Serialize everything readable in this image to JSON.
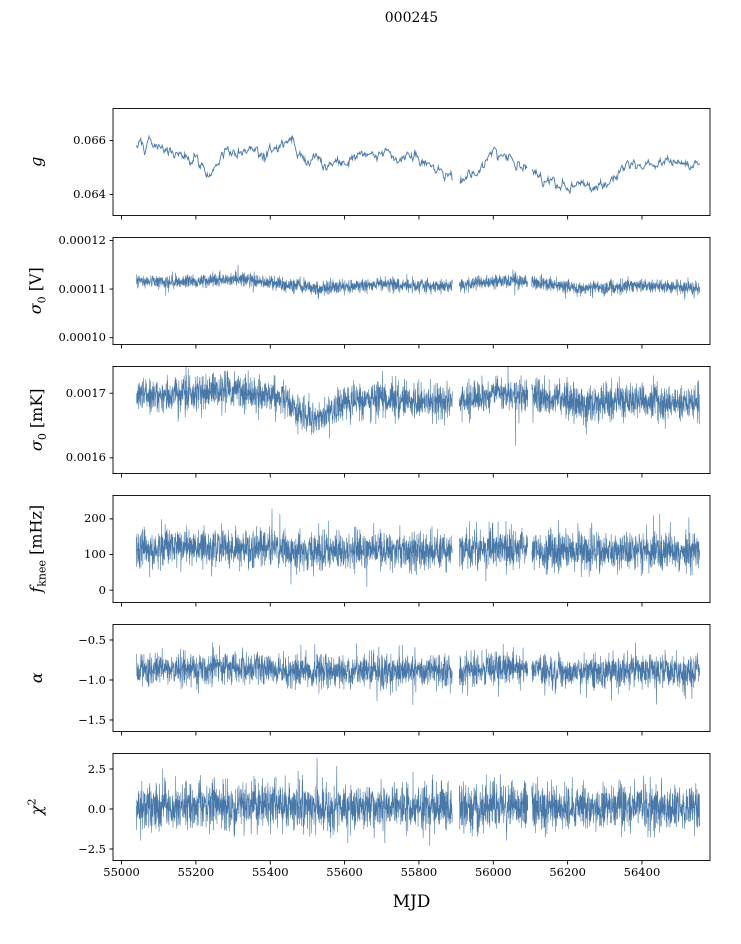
{
  "title": "000245",
  "chart_data": {
    "type": "line",
    "title": "000245",
    "xlabel": "MJD",
    "xlim": [
      54977,
      56583
    ],
    "xticks": [
      55000,
      55200,
      55400,
      55600,
      55800,
      56000,
      56200,
      56400
    ],
    "xtick_labels": [
      "55000",
      "55200",
      "55400",
      "55600",
      "55800",
      "56000",
      "56200",
      "56400"
    ],
    "x_data_range": [
      55040,
      56555
    ],
    "gaps": [
      [
        55890,
        55908
      ],
      [
        56093,
        56103
      ]
    ],
    "line_color": "#4878a8",
    "frame_color": "#000000",
    "panels": [
      {
        "name": "g",
        "ylabel": {
          "pre": "g",
          "sub": "",
          "sup": "",
          "post": ""
        },
        "ylim": [
          0.0632,
          0.0672
        ],
        "yticks": [
          0.066,
          0.064
        ],
        "ytick_labels": [
          "0.066",
          "0.064"
        ],
        "style": "smooth",
        "noise_sigma": 0.00014,
        "seed": 101,
        "keypoints": [
          [
            55040,
            0.0658
          ],
          [
            55080,
            0.0659
          ],
          [
            55120,
            0.0656
          ],
          [
            55160,
            0.0654
          ],
          [
            55200,
            0.0653
          ],
          [
            55240,
            0.0649
          ],
          [
            55270,
            0.0655
          ],
          [
            55310,
            0.0656
          ],
          [
            55350,
            0.0655
          ],
          [
            55390,
            0.0655
          ],
          [
            55420,
            0.0657
          ],
          [
            55460,
            0.0661
          ],
          [
            55490,
            0.0651
          ],
          [
            55520,
            0.0655
          ],
          [
            55550,
            0.0652
          ],
          [
            55590,
            0.0653
          ],
          [
            55640,
            0.0654
          ],
          [
            55690,
            0.0655
          ],
          [
            55740,
            0.0655
          ],
          [
            55790,
            0.0654
          ],
          [
            55840,
            0.0652
          ],
          [
            55880,
            0.0647
          ],
          [
            55910,
            0.0646
          ],
          [
            55950,
            0.0649
          ],
          [
            56000,
            0.0654
          ],
          [
            56040,
            0.0654
          ],
          [
            56080,
            0.065
          ],
          [
            56120,
            0.0647
          ],
          [
            56160,
            0.0646
          ],
          [
            56200,
            0.0643
          ],
          [
            56240,
            0.0645
          ],
          [
            56270,
            0.064
          ],
          [
            56310,
            0.0646
          ],
          [
            56350,
            0.065
          ],
          [
            56390,
            0.0652
          ],
          [
            56430,
            0.0651
          ],
          [
            56470,
            0.0652
          ],
          [
            56555,
            0.0651
          ]
        ]
      },
      {
        "name": "sigma0-V",
        "ylabel": {
          "pre": "σ",
          "sub": "0",
          "sup": "",
          "post": " [V]"
        },
        "ylim": [
          9.85e-05,
          0.0001207
        ],
        "yticks": [
          0.00012,
          0.00011,
          0.0001
        ],
        "ytick_labels": [
          "0.00012",
          "0.00011",
          "0.00010"
        ],
        "style": "noise",
        "baseline": 0.000111,
        "sigma": 7e-07,
        "slow_amp": 6e-07,
        "spike_p": 0.006,
        "spike_scale": 1.8e-06,
        "spike_dir": "down",
        "seed": 202
      },
      {
        "name": "sigma0-mK",
        "ylabel": {
          "pre": "σ",
          "sub": "0",
          "sup": "",
          "post": " [mK]"
        },
        "ylim": [
          0.001575,
          0.001742
        ],
        "yticks": [
          0.0017,
          0.0016
        ],
        "ytick_labels": [
          "0.0017",
          "0.0016"
        ],
        "style": "noise",
        "baseline": 0.001692,
        "sigma": 1.35e-05,
        "slow_amp": 6e-06,
        "dip": {
          "center": 55515,
          "width": 45,
          "depth": 2.2e-05
        },
        "spike_p": 0.006,
        "spike_scale": 4e-05,
        "spike_dir": "down",
        "seed": 303
      },
      {
        "name": "fknee",
        "ylabel": {
          "pre": "f",
          "sub": "knee",
          "sup": "",
          "post": " [mHz]"
        },
        "ylim": [
          -36,
          267
        ],
        "yticks": [
          200,
          100,
          0
        ],
        "ytick_labels": [
          "200",
          "100",
          "0"
        ],
        "style": "noise",
        "baseline": 113,
        "sigma": 27,
        "slow_amp": 4,
        "spike_p": 0.004,
        "spike_scale": 55,
        "spike_dir": "up",
        "seed": 404
      },
      {
        "name": "alpha",
        "ylabel": {
          "pre": "α",
          "sub": "",
          "sup": "",
          "post": ""
        },
        "ylim": [
          -1.65,
          -0.3
        ],
        "yticks": [
          -0.5,
          -1.0,
          -1.5
        ],
        "ytick_labels": [
          "−0.5",
          "−1.0",
          "−1.5"
        ],
        "style": "noise",
        "baseline": -0.88,
        "sigma": 0.105,
        "slow_amp": 0.02,
        "spike_p": 0.006,
        "spike_scale": 0.28,
        "spike_dir": "down",
        "seed": 505
      },
      {
        "name": "chi2",
        "ylabel": {
          "pre": "χ",
          "sub": "",
          "sup": "2",
          "post": ""
        },
        "ylim": [
          -3.25,
          3.5
        ],
        "yticks": [
          2.5,
          0.0,
          -2.5
        ],
        "ytick_labels": [
          "2.5",
          "0.0",
          "−2.5"
        ],
        "style": "noise",
        "baseline": 0.18,
        "sigma": 0.72,
        "slow_amp": 0.06,
        "spike_p": 0.005,
        "spike_scale": 1.1,
        "spike_dir": "both",
        "seed": 606
      }
    ]
  }
}
